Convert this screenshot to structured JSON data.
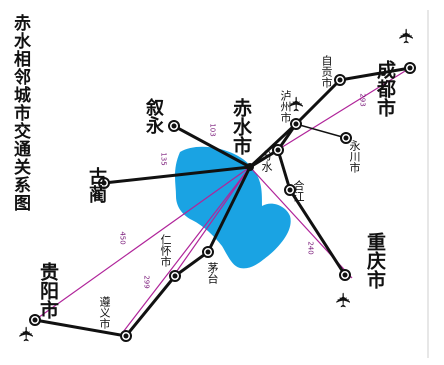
{
  "title": "赤水相邻城市交通关系图",
  "colors": {
    "lake": "#1aa3e3",
    "road": "#111111",
    "rail": "#b0259a",
    "distance_label": "#7a1a7a"
  },
  "center": {
    "name": "赤水市"
  },
  "cities": [
    {
      "id": "chengdu",
      "name": "成都市",
      "airport": true
    },
    {
      "id": "zigong",
      "name": "自贡市"
    },
    {
      "id": "luzhou",
      "name": "泸州市",
      "airport": true
    },
    {
      "id": "yongchuan",
      "name": "永川市"
    },
    {
      "id": "fenshui",
      "name": "分水"
    },
    {
      "id": "hejiang",
      "name": "合江"
    },
    {
      "id": "chongqing",
      "name": "重庆市",
      "airport": true
    },
    {
      "id": "xuyong",
      "name": "叙永"
    },
    {
      "id": "gulin",
      "name": "古蔺"
    },
    {
      "id": "renhuai",
      "name": "仁怀市"
    },
    {
      "id": "maotai",
      "name": "茅台"
    },
    {
      "id": "zunyi",
      "name": "遵义市"
    },
    {
      "id": "guiyang",
      "name": "贵阳市",
      "airport": true
    }
  ],
  "distances": [
    {
      "id": "to-chengdu",
      "label": "293"
    },
    {
      "id": "to-xuyong",
      "label": "103"
    },
    {
      "id": "to-gulin",
      "label": "135"
    },
    {
      "id": "to-guiyang",
      "label": "450"
    },
    {
      "id": "to-renhuai",
      "label": "299"
    },
    {
      "id": "to-chongqing",
      "label": "240"
    }
  ],
  "icons": [
    "airplane-icon",
    "city-marker-icon",
    "lake-shape"
  ]
}
